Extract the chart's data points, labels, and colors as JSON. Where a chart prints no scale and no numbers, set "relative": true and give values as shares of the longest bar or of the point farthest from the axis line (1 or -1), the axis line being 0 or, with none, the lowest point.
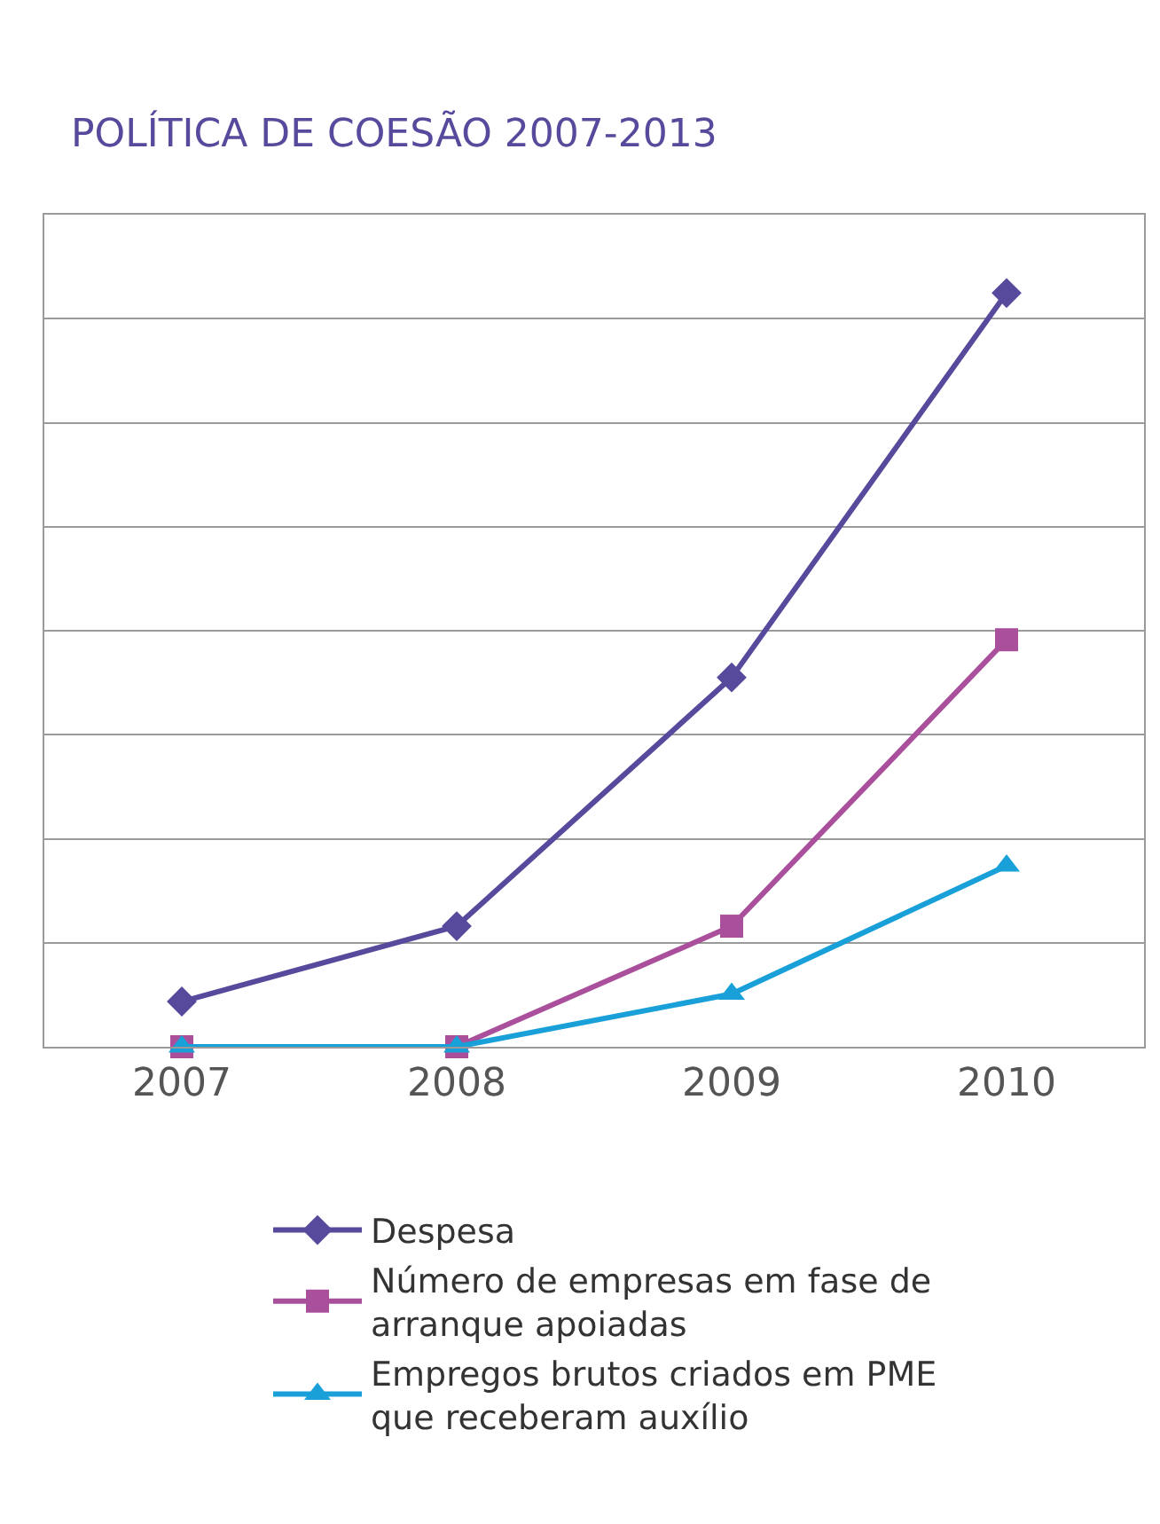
{
  "chart_data": {
    "type": "line",
    "title": "POLÍTICA DE COESÃO 2007-2013",
    "categories": [
      "2007",
      "2008",
      "2009",
      "2010"
    ],
    "relative": true,
    "grid": "y",
    "legend": "bottom",
    "series": [
      {
        "name": "Despesa",
        "color": "#574a9c",
        "marker": "diamond",
        "values": [
          0.06,
          0.16,
          0.49,
          1
        ]
      },
      {
        "name": "Número de empresas em fase de arranque apoiadas",
        "color": "#a94f9c",
        "marker": "square",
        "values": [
          0,
          0,
          0.16,
          0.54
        ]
      },
      {
        "name": "Empregos brutos criados em PME que receberam auxílio",
        "color": "#1aa0d8",
        "marker": "triangle",
        "values": [
          0,
          0,
          0.07,
          0.24
        ]
      }
    ]
  }
}
